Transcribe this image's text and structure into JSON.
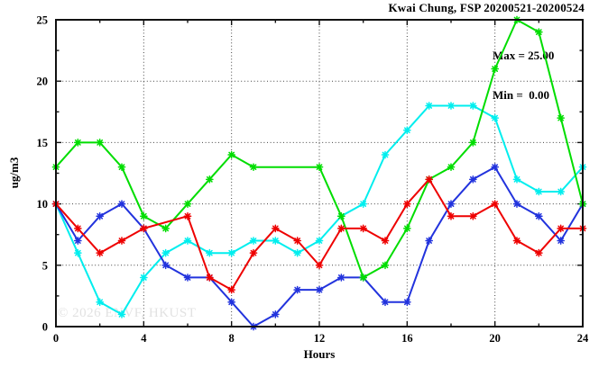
{
  "header": {
    "title": "Kwai Chung, FSP 20200521-20200524"
  },
  "stats_box": {
    "max_label": "Max = 25.00",
    "min_label": "Min =  0.00"
  },
  "watermark": {
    "text": "© 2026 ENVF, HKUST"
  },
  "chart_data": {
    "type": "line",
    "title": "Kwai Chung, FSP 20200521-20200524",
    "xlabel": "Hours",
    "ylabel": "ug/m3",
    "xlim": [
      0,
      24
    ],
    "ylim": [
      0,
      25
    ],
    "x_major_ticks": [
      0,
      4,
      8,
      12,
      16,
      20,
      24
    ],
    "x_minor_ticks": [
      2,
      6,
      10,
      14,
      18,
      22
    ],
    "y_major_ticks": [
      0,
      5,
      10,
      15,
      20,
      25
    ],
    "y_minor_ticks": [
      2.5,
      7.5,
      12.5,
      17.5,
      22.5
    ],
    "grid_x": [
      4,
      8,
      12,
      16,
      20
    ],
    "grid_y": [
      5,
      10,
      15,
      20
    ],
    "grid": "dotted",
    "legend_position": "none",
    "marker": "asterisk",
    "max_value": 25.0,
    "min_value": 0.0,
    "x": [
      0,
      1,
      2,
      3,
      4,
      5,
      6,
      7,
      8,
      9,
      10,
      11,
      12,
      13,
      14,
      15,
      16,
      17,
      18,
      19,
      20,
      21,
      22,
      23,
      24
    ],
    "series": [
      {
        "name": "cyan-series",
        "color": "#00eeee",
        "values": [
          10,
          6,
          2,
          1,
          4,
          6,
          7,
          6,
          6,
          7,
          7,
          6,
          7,
          9,
          10,
          14,
          16,
          18,
          18,
          18,
          17,
          12,
          11,
          11,
          13
        ]
      },
      {
        "name": "blue-series",
        "color": "#2233dd",
        "values": [
          10,
          7,
          9,
          10,
          8,
          5,
          4,
          4,
          2,
          0,
          1,
          3,
          3,
          4,
          4,
          2,
          2,
          7,
          10,
          12,
          13,
          10,
          9,
          7,
          10
        ]
      },
      {
        "name": "green-series",
        "color": "#00dd00",
        "values": [
          13,
          15,
          15,
          13,
          9,
          8,
          10,
          12,
          14,
          13,
          null,
          null,
          13,
          9,
          4,
          5,
          8,
          12,
          13,
          15,
          21,
          25,
          24,
          17,
          10
        ]
      },
      {
        "name": "red-series",
        "color": "#ee0000",
        "values": [
          10,
          8,
          6,
          7,
          8,
          null,
          9,
          4,
          3,
          6,
          8,
          7,
          5,
          8,
          8,
          7,
          10,
          12,
          9,
          9,
          10,
          7,
          6,
          8,
          8
        ]
      }
    ],
    "axis_color": "#111111",
    "grid_color": "#444444"
  }
}
